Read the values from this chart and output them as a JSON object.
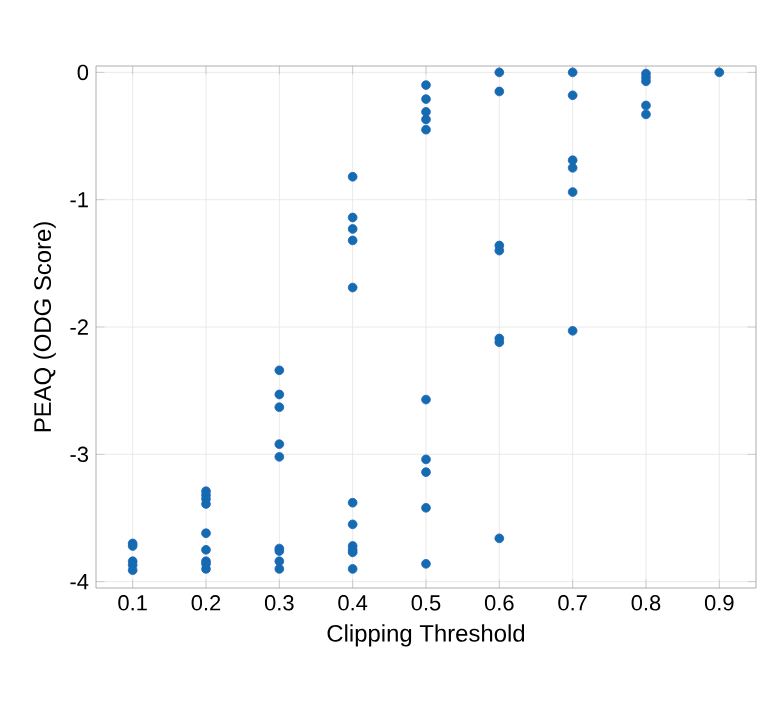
{
  "chart_data": {
    "type": "scatter",
    "xlabel": "Clipping Threshold",
    "ylabel": "PEAQ (ODG Score)",
    "x": [
      0.1,
      0.1,
      0.1,
      0.1,
      0.1,
      0.2,
      0.2,
      0.2,
      0.2,
      0.2,
      0.2,
      0.2,
      0.2,
      0.2,
      0.3,
      0.3,
      0.3,
      0.3,
      0.3,
      0.3,
      0.3,
      0.3,
      0.3,
      0.4,
      0.4,
      0.4,
      0.4,
      0.4,
      0.4,
      0.4,
      0.4,
      0.4,
      0.4,
      0.4,
      0.5,
      0.5,
      0.5,
      0.5,
      0.5,
      0.5,
      0.5,
      0.5,
      0.5,
      0.5,
      0.6,
      0.6,
      0.6,
      0.6,
      0.6,
      0.6,
      0.6,
      0.7,
      0.7,
      0.7,
      0.7,
      0.7,
      0.7,
      0.8,
      0.8,
      0.8,
      0.8,
      0.8,
      0.9
    ],
    "values": [
      -3.7,
      -3.72,
      -3.84,
      -3.87,
      -3.91,
      -3.29,
      -3.32,
      -3.35,
      -3.39,
      -3.62,
      -3.75,
      -3.84,
      -3.86,
      -3.9,
      -2.34,
      -2.53,
      -2.63,
      -2.92,
      -3.02,
      -3.74,
      -3.76,
      -3.84,
      -3.9,
      -0.82,
      -1.14,
      -1.23,
      -1.32,
      -1.69,
      -3.38,
      -3.55,
      -3.72,
      -3.75,
      -3.77,
      -3.9,
      -0.1,
      -0.21,
      -0.31,
      -0.37,
      -0.45,
      -2.57,
      -3.04,
      -3.14,
      -3.42,
      -3.86,
      0,
      -0.15,
      -1.36,
      -1.4,
      -2.09,
      -2.12,
      -3.66,
      0,
      -0.18,
      -0.69,
      -0.75,
      -0.94,
      -2.03,
      -0.01,
      -0.04,
      -0.07,
      -0.26,
      -0.33,
      0
    ],
    "color": "#1f5fc8",
    "marker": "circle",
    "grid": true,
    "xlim": [
      0.05,
      0.95
    ],
    "ylim": [
      -4.05,
      0.05
    ],
    "xticks": [
      0.1,
      0.2,
      0.3,
      0.4,
      0.5,
      0.6,
      0.7,
      0.8,
      0.9
    ],
    "yticks": [
      -4,
      -3,
      -2,
      -1,
      0
    ]
  }
}
